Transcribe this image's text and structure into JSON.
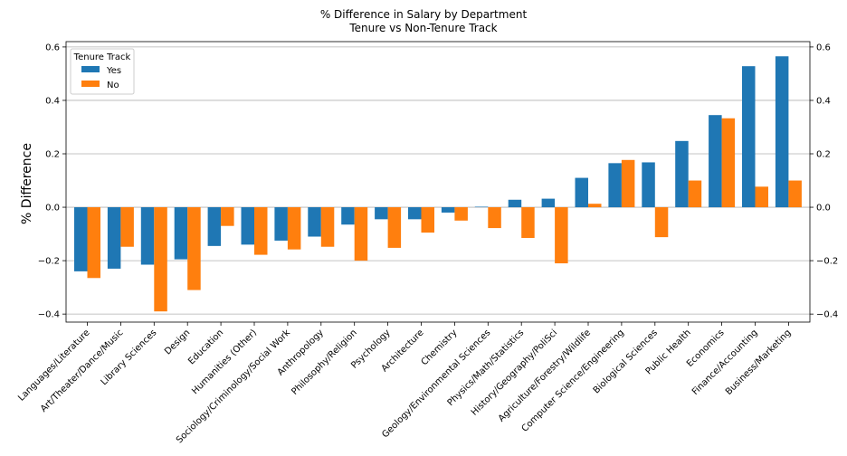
{
  "chart_data": {
    "type": "bar",
    "title": "% Difference in Salary by Department",
    "subtitle": "Tenure vs Non-Tenure Track",
    "xlabel": "",
    "ylabel": "% Difference",
    "ylim": [
      -0.43,
      0.62
    ],
    "yticks": [
      -0.4,
      -0.2,
      0.0,
      0.2,
      0.4,
      0.6
    ],
    "ytick_labels": [
      "−0.4",
      "−0.2",
      "0.0",
      "0.2",
      "0.4",
      "0.6"
    ],
    "grid": "horizontal",
    "legend": {
      "title": "Tenure Track",
      "placement": "top-left"
    },
    "categories": [
      "Languages/Literature",
      "Art/Theater/Dance/Music",
      "Library Sciences",
      "Design",
      "Education",
      "Humanities (Other)",
      "Sociology/Criminology/Social Work",
      "Anthropology",
      "Philosophy/Religion",
      "Psychology",
      "Architecture",
      "Chemistry",
      "Geology/Environmental Sciences",
      "Physics/Math/Statistics",
      "History/Geography/PoliSci",
      "Agriculture/Forestry/Wildlife",
      "Computer Science/Engineering",
      "Biological Sciences",
      "Public Health",
      "Economics",
      "Finance/Accounting",
      "Business/Marketing"
    ],
    "series": [
      {
        "name": "Yes",
        "color": "#1f77b4",
        "values": [
          -0.24,
          -0.23,
          -0.215,
          -0.195,
          -0.145,
          -0.14,
          -0.125,
          -0.11,
          -0.065,
          -0.045,
          -0.045,
          -0.02,
          0.002,
          0.028,
          0.032,
          0.11,
          0.165,
          0.168,
          0.248,
          0.345,
          0.528,
          0.565
        ]
      },
      {
        "name": "No",
        "color": "#ff7f0e",
        "values": [
          -0.265,
          -0.148,
          -0.39,
          -0.31,
          -0.07,
          -0.178,
          -0.158,
          -0.148,
          -0.2,
          -0.152,
          -0.095,
          -0.05,
          -0.078,
          -0.115,
          -0.21,
          0.013,
          0.177,
          -0.112,
          0.1,
          0.333,
          0.077,
          0.1
        ]
      }
    ]
  }
}
